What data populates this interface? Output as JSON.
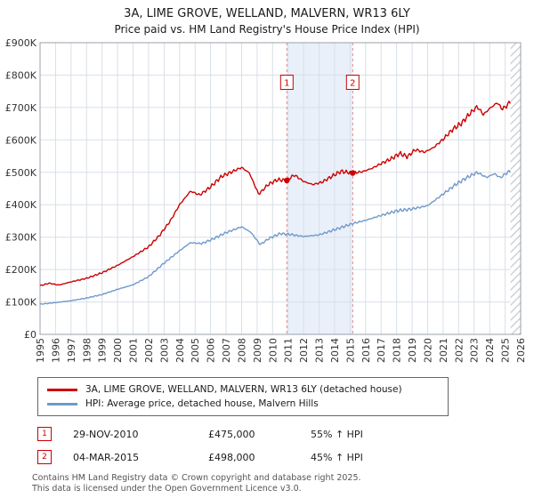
{
  "chart_data": {
    "type": "line",
    "title": "3A, LIME GROVE, WELLAND, MALVERN, WR13 6LY",
    "subtitle": "Price paid vs. HM Land Registry's House Price Index (HPI)",
    "xlim": [
      1995,
      2026
    ],
    "ylim_k": [
      0,
      900
    ],
    "grid": true,
    "legend_position": "below",
    "ytick_labels": [
      "£0",
      "£100K",
      "£200K",
      "£300K",
      "£400K",
      "£500K",
      "£600K",
      "£700K",
      "£800K",
      "£900K"
    ],
    "xtick_labels": [
      "1995",
      "1996",
      "1997",
      "1998",
      "1999",
      "2000",
      "2001",
      "2002",
      "2003",
      "2004",
      "2005",
      "2006",
      "2007",
      "2008",
      "2009",
      "2010",
      "2011",
      "2012",
      "2013",
      "2014",
      "2015",
      "2016",
      "2017",
      "2018",
      "2019",
      "2020",
      "2021",
      "2022",
      "2023",
      "2024",
      "2025",
      "2026"
    ],
    "colors": {
      "red_series": "#cc0000",
      "blue_series": "#7099cc",
      "marker": "#cc0000",
      "dashed": "#e08888",
      "band": "#e9f0fa",
      "grid": "#d9dfe8",
      "border": "#9aa0a8",
      "hatch": "#c4c9d0"
    },
    "series": [
      {
        "name": "3A, LIME GROVE, WELLAND, MALVERN, WR13 6LY (detached house)",
        "color": "#cc0000",
        "anchors": [
          [
            1995.0,
            150
          ],
          [
            1995.6,
            158
          ],
          [
            1996.2,
            152
          ],
          [
            1997.0,
            162
          ],
          [
            1998.0,
            173
          ],
          [
            1999.0,
            190
          ],
          [
            2000.0,
            213
          ],
          [
            2001.0,
            240
          ],
          [
            2002.0,
            270
          ],
          [
            2002.7,
            305
          ],
          [
            2003.4,
            350
          ],
          [
            2004.0,
            400
          ],
          [
            2004.7,
            442
          ],
          [
            2005.3,
            430
          ],
          [
            2006.0,
            455
          ],
          [
            2006.7,
            487
          ],
          [
            2007.3,
            500
          ],
          [
            2008.0,
            515
          ],
          [
            2008.5,
            498
          ],
          [
            2009.1,
            432
          ],
          [
            2009.7,
            462
          ],
          [
            2010.3,
            477
          ],
          [
            2010.92,
            475
          ],
          [
            2011.4,
            492
          ],
          [
            2012.0,
            472
          ],
          [
            2012.6,
            462
          ],
          [
            2013.2,
            470
          ],
          [
            2013.8,
            487
          ],
          [
            2014.4,
            503
          ],
          [
            2015.17,
            498
          ],
          [
            2015.8,
            502
          ],
          [
            2016.4,
            512
          ],
          [
            2017.0,
            527
          ],
          [
            2017.7,
            543
          ],
          [
            2018.2,
            558
          ],
          [
            2018.7,
            548
          ],
          [
            2019.2,
            570
          ],
          [
            2019.8,
            562
          ],
          [
            2020.4,
            577
          ],
          [
            2021.0,
            602
          ],
          [
            2021.6,
            632
          ],
          [
            2022.2,
            652
          ],
          [
            2022.7,
            680
          ],
          [
            2023.2,
            703
          ],
          [
            2023.6,
            678
          ],
          [
            2024.0,
            697
          ],
          [
            2024.5,
            715
          ],
          [
            2024.8,
            695
          ],
          [
            2025.1,
            705
          ],
          [
            2025.35,
            720
          ]
        ]
      },
      {
        "name": "HPI: Average price, detached house, Malvern Hills",
        "color": "#7099cc",
        "anchors": [
          [
            1995.0,
            93
          ],
          [
            1996.0,
            98
          ],
          [
            1997.0,
            104
          ],
          [
            1998.0,
            112
          ],
          [
            1999.0,
            123
          ],
          [
            2000.0,
            139
          ],
          [
            2001.0,
            153
          ],
          [
            2002.0,
            178
          ],
          [
            2003.0,
            220
          ],
          [
            2004.0,
            258
          ],
          [
            2004.7,
            283
          ],
          [
            2005.4,
            280
          ],
          [
            2006.0,
            291
          ],
          [
            2007.0,
            314
          ],
          [
            2008.0,
            332
          ],
          [
            2008.6,
            315
          ],
          [
            2009.2,
            277
          ],
          [
            2009.8,
            297
          ],
          [
            2010.5,
            311
          ],
          [
            2011.2,
            308
          ],
          [
            2012.0,
            302
          ],
          [
            2013.0,
            307
          ],
          [
            2014.0,
            323
          ],
          [
            2015.17,
            342
          ],
          [
            2016.0,
            352
          ],
          [
            2017.0,
            367
          ],
          [
            2018.0,
            381
          ],
          [
            2019.0,
            387
          ],
          [
            2020.0,
            397
          ],
          [
            2021.0,
            433
          ],
          [
            2021.8,
            462
          ],
          [
            2022.5,
            483
          ],
          [
            2023.2,
            500
          ],
          [
            2023.8,
            484
          ],
          [
            2024.3,
            496
          ],
          [
            2024.7,
            483
          ],
          [
            2025.0,
            495
          ],
          [
            2025.35,
            505
          ]
        ]
      }
    ],
    "markers": [
      {
        "label": "1",
        "x": 2010.92,
        "y": 475,
        "box_y": 778
      },
      {
        "label": "2",
        "x": 2015.17,
        "y": 498,
        "box_y": 778
      }
    ],
    "shaded_region": {
      "from": 2010.92,
      "to": 2015.17
    },
    "hatch_region": {
      "from": 2025.35,
      "to": 2026
    }
  },
  "transactions": [
    {
      "num": "1",
      "date": "29-NOV-2010",
      "price": "£475,000",
      "hpi": "55% ↑ HPI"
    },
    {
      "num": "2",
      "date": "04-MAR-2015",
      "price": "£498,000",
      "hpi": "45% ↑ HPI"
    }
  ],
  "footer": {
    "line1": "Contains HM Land Registry data © Crown copyright and database right 2025.",
    "line2": "This data is licensed under the Open Government Licence v3.0."
  }
}
